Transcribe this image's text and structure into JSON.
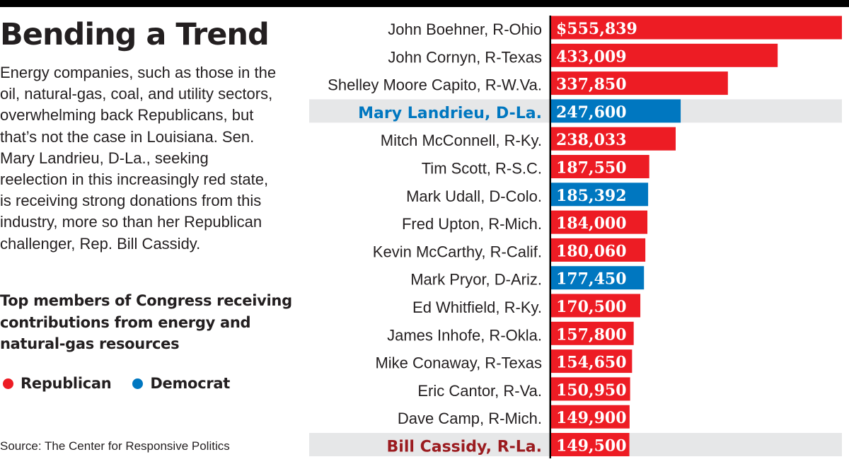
{
  "title": "Bending a Trend",
  "description": "Energy companies, such as those in the oil, natural-gas, coal, and utility sectors, overwhelming back Republicans, but that’s not the case in Louisiana. Sen. Mary Landrieu, D-La., seeking reelection in this increasingly red state, is receiving strong donations from this industry, more so than her Republican challenger, Rep. Bill Cassidy.",
  "subtitle": "Top members of Congress receiving contributions from energy and natural-gas resources",
  "legend": [
    {
      "label": "Republican",
      "color": "#ed1c24"
    },
    {
      "label": "Democrat",
      "color": "#0077c0"
    }
  ],
  "source": "Source: The Center for Responsive Politics",
  "colors": {
    "republican": "#ed1c24",
    "democrat": "#0077c0",
    "highlight_band": "#e6e7e8",
    "highlight_democrat_text": "#0077c0",
    "highlight_republican_text": "#9b1b1f",
    "axis": "#000000"
  },
  "chart_data": {
    "type": "bar",
    "orientation": "horizontal",
    "categories": [
      "John Boehner, R-Ohio",
      "John Cornyn, R-Texas",
      "Shelley Moore Capito, R-W.Va.",
      "Mary Landrieu, D-La.",
      "Mitch McConnell, R-Ky.",
      "Tim Scott, R-S.C.",
      "Mark Udall, D-Colo.",
      "Fred Upton, R-Mich.",
      "Kevin McCarthy, R-Calif.",
      "Mark Pryor, D-Ariz.",
      "Ed Whitfield, R-Ky.",
      "James Inhofe, R-Okla.",
      "Mike Conaway, R-Texas",
      "Eric Cantor, R-Va.",
      "Dave Camp, R-Mich.",
      "Bill Cassidy, R-La."
    ],
    "values": [
      555839,
      433009,
      337850,
      247600,
      238033,
      187550,
      185392,
      184000,
      180060,
      177450,
      170500,
      157800,
      154650,
      150950,
      149900,
      149500
    ],
    "value_labels": [
      "$555,839",
      "433,009",
      "337,850",
      "247,600",
      "238,033",
      "187,550",
      "185,392",
      "184,000",
      "180,060",
      "177,450",
      "170,500",
      "157,800",
      "154,650",
      "150,950",
      "149,900",
      "149,500"
    ],
    "party": [
      "R",
      "R",
      "R",
      "D",
      "R",
      "R",
      "D",
      "R",
      "R",
      "D",
      "R",
      "R",
      "R",
      "R",
      "R",
      "R"
    ],
    "highlighted": [
      "Mary Landrieu, D-La.",
      "Bill Cassidy, R-La."
    ],
    "xlim": [
      0,
      555839
    ],
    "grid": false,
    "legend_position": "left"
  }
}
